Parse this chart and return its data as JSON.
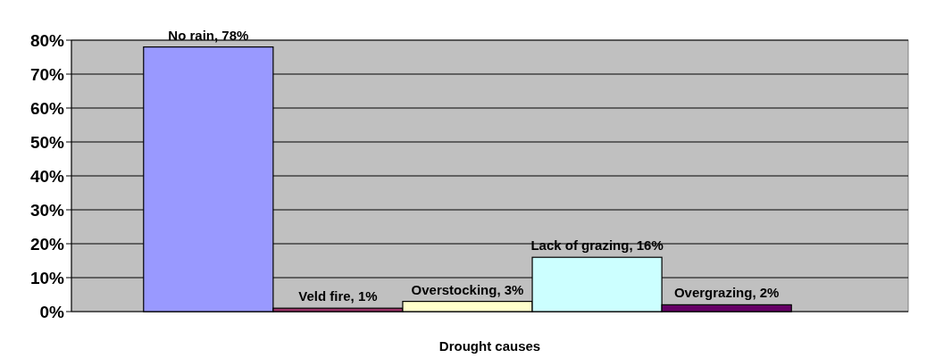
{
  "chart_data": {
    "type": "bar",
    "xlabel": "Drought causes",
    "categories": [
      null,
      null,
      null,
      null,
      null
    ],
    "values": [
      78,
      1,
      3,
      16,
      2
    ],
    "colors": [
      "#9999ff",
      "#993366",
      "#ffffcc",
      "#ccffff",
      "#660066"
    ],
    "value_labels": [
      "No rain, 78%",
      "Veld fire, 1%",
      "Overstocking, 3%",
      "Lack of grazing, 16%",
      "Overgrazing, 2%"
    ],
    "ylim": [
      0,
      80
    ],
    "yticks": [
      {
        "value": 0,
        "label": "0%"
      },
      {
        "value": 10,
        "label": "10%"
      },
      {
        "value": 20,
        "label": "20%"
      },
      {
        "value": 30,
        "label": "30%"
      },
      {
        "value": 40,
        "label": "40%"
      },
      {
        "value": 50,
        "label": "50%"
      },
      {
        "value": 60,
        "label": "60%"
      },
      {
        "value": 70,
        "label": "70%"
      },
      {
        "value": 80,
        "label": "80%"
      }
    ],
    "grid": "y",
    "tick_labels": "y"
  }
}
